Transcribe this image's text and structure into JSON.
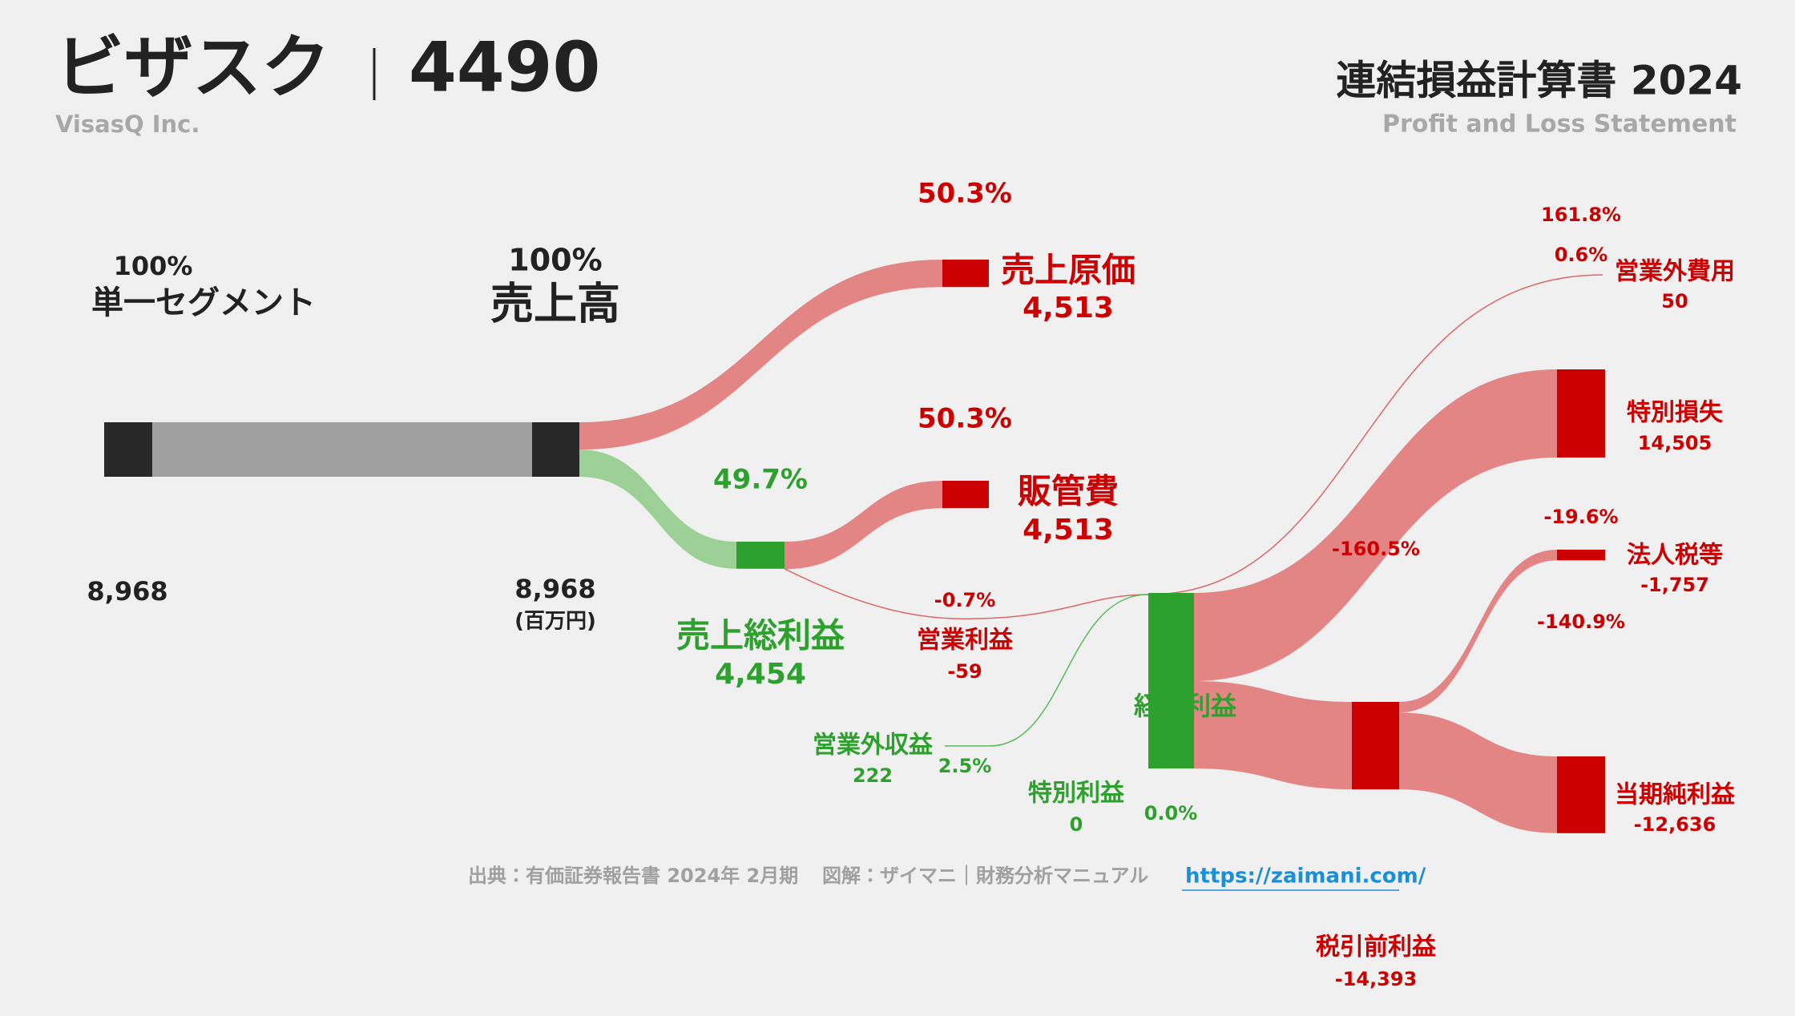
{
  "header": {
    "company": "ビザスク",
    "code": "4490",
    "company_en": "VisasQ Inc.",
    "title": "連結損益計算書 2024",
    "subtitle": "Profit and Loss Statement"
  },
  "chart_data": {
    "type": "sankey",
    "unit": "(百万円)",
    "nodes": [
      {
        "name": "単一セグメント",
        "value": 8968,
        "value_label": "8,968",
        "share": "100%"
      },
      {
        "name": "売上高",
        "value": 8968,
        "value_label": "8,968",
        "share": "100%"
      },
      {
        "name": "売上原価",
        "value": 4513,
        "value_label": "4,513",
        "share": "50.3%"
      },
      {
        "name": "販管費",
        "value": 4513,
        "value_label": "4,513",
        "share": "50.3%"
      },
      {
        "name": "売上総利益",
        "value": 4454,
        "value_label": "4,454",
        "share": "49.7%"
      },
      {
        "name": "営業利益",
        "value": -59,
        "share": "-0.7%"
      },
      {
        "name": "営業外収益",
        "value": 222,
        "share": "2.5%"
      },
      {
        "name": "特別利益",
        "value": 0,
        "share": "0.0%"
      },
      {
        "name": "経常利益"
      },
      {
        "name": "営業外費用",
        "value": 50,
        "share": "0.6%"
      },
      {
        "name": "特別損失",
        "value": 14505,
        "value_label": "14,505",
        "share": "161.8%"
      },
      {
        "name": "税引前利益",
        "value": -14393,
        "value_label": "-14,393",
        "share": "-160.5%"
      },
      {
        "name": "法人税等",
        "value": -1757,
        "value_label": "-1,757",
        "share": "-19.6%"
      },
      {
        "name": "当期純利益",
        "value": -12636,
        "value_label": "-12,636",
        "share": "-140.9%"
      }
    ]
  },
  "footer": {
    "source": "出典：有価証券報告書 2024年 2月期",
    "credit": "図解：ザイマニ｜財務分析マニュアル",
    "url": "https://zaimani.com/"
  }
}
